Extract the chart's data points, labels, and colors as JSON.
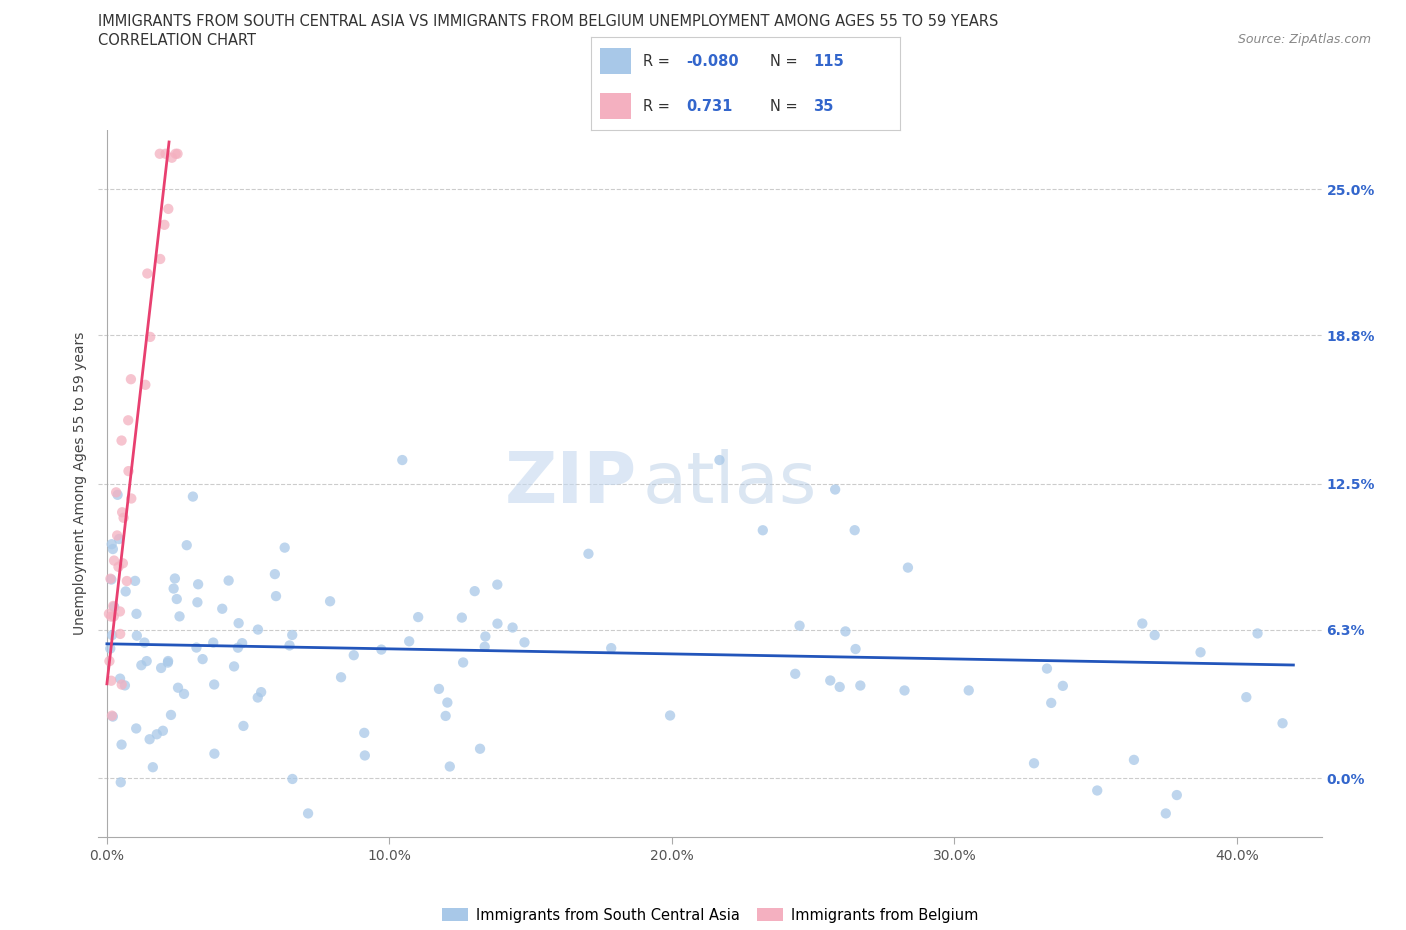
{
  "title_line1": "IMMIGRANTS FROM SOUTH CENTRAL ASIA VS IMMIGRANTS FROM BELGIUM UNEMPLOYMENT AMONG AGES 55 TO 59 YEARS",
  "title_line2": "CORRELATION CHART",
  "source_text": "Source: ZipAtlas.com",
  "xlim": [
    0.0,
    0.42
  ],
  "ylim": [
    -0.02,
    0.27
  ],
  "blue_color": "#a8c8e8",
  "pink_color": "#f4b0c0",
  "blue_line_color": "#2255bb",
  "pink_line_color": "#e84070",
  "legend_r_blue": "-0.080",
  "legend_n_blue": "115",
  "legend_r_pink": "0.731",
  "legend_n_pink": "35",
  "watermark_zip": "ZIP",
  "watermark_atlas": "atlas",
  "legend_label_blue": "Immigrants from South Central Asia",
  "legend_label_pink": "Immigrants from Belgium",
  "ytick_vals": [
    0.0,
    0.063,
    0.125,
    0.188,
    0.25
  ],
  "ytick_labels": [
    "0.0%",
    "6.3%",
    "12.5%",
    "18.8%",
    "25.0%"
  ],
  "xtick_vals": [
    0.0,
    0.1,
    0.2,
    0.3,
    0.4
  ],
  "xtick_labels": [
    "0.0%",
    "10.0%",
    "20.0%",
    "30.0%",
    "40.0%"
  ],
  "blue_line_x": [
    0.0,
    0.42
  ],
  "blue_line_y": [
    0.057,
    0.048
  ],
  "pink_line_x": [
    0.0,
    0.022
  ],
  "pink_line_y": [
    0.04,
    0.27
  ]
}
